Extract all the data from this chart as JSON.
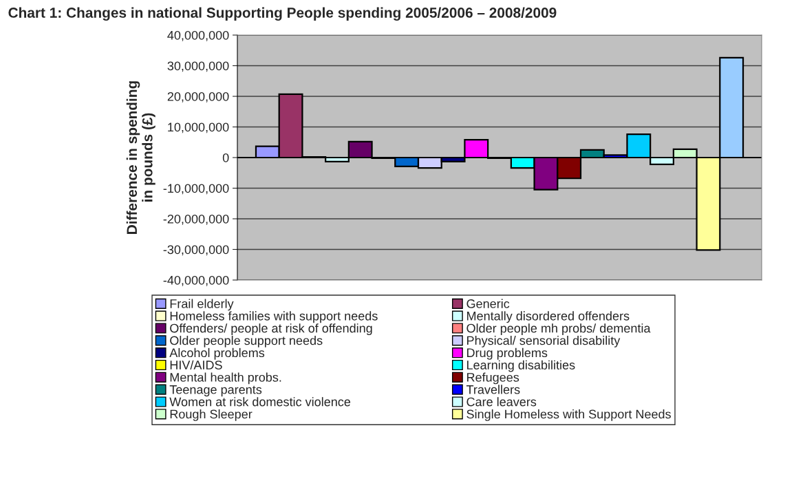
{
  "chart_data": {
    "type": "bar",
    "title": "Chart 1: Changes in national Supporting People spending 2005/2006 – 2008/2009",
    "ylabel": "Difference in spending\nin pounds (£)",
    "categories": [
      null
    ],
    "series": [
      {
        "name": "Frail elderly",
        "color": "#9999ff",
        "values": [
          3700000
        ]
      },
      {
        "name": "Generic",
        "color": "#993366",
        "values": [
          20700000
        ]
      },
      {
        "name": "Homeless families with support needs",
        "color": "#ffffcc",
        "values": [
          200000
        ]
      },
      {
        "name": "Mentally disordered offenders",
        "color": "#ccffff",
        "values": [
          -1300000
        ]
      },
      {
        "name": "Offenders/ people at risk of offending",
        "color": "#660066",
        "values": [
          5200000
        ]
      },
      {
        "name": "Older people mh probs/ dementia",
        "color": "#ff8080",
        "values": [
          -200000
        ]
      },
      {
        "name": "Older people support needs",
        "color": "#0066cc",
        "values": [
          -2900000
        ]
      },
      {
        "name": "Physical/ sensorial disability",
        "color": "#ccccff",
        "values": [
          -3400000
        ]
      },
      {
        "name": "Alcohol problems",
        "color": "#000080",
        "values": [
          -1300000
        ]
      },
      {
        "name": "Drug problems",
        "color": "#ff00ff",
        "values": [
          5800000
        ]
      },
      {
        "name": "HIV/AIDS",
        "color": "#ffff00",
        "values": [
          -200000
        ]
      },
      {
        "name": "Learning disabilities",
        "color": "#00ffff",
        "values": [
          -3400000
        ]
      },
      {
        "name": "Mental health probs.",
        "color": "#800080",
        "values": [
          -10500000
        ]
      },
      {
        "name": "Refugees",
        "color": "#800000",
        "values": [
          -6800000
        ]
      },
      {
        "name": "Teenage parents",
        "color": "#008080",
        "values": [
          2500000
        ]
      },
      {
        "name": "Travellers",
        "color": "#0000ff",
        "values": [
          800000
        ]
      },
      {
        "name": "Women at risk domestic violence",
        "color": "#00ccff",
        "values": [
          7600000
        ]
      },
      {
        "name": "Care leavers",
        "color": "#ccffff",
        "values": [
          -2200000
        ]
      },
      {
        "name": "Rough Sleeper",
        "color": "#ccffcc",
        "values": [
          2700000
        ]
      },
      {
        "name": "Single Homeless with Support Needs",
        "color": "#ffff99",
        "values": [
          -30200000
        ]
      },
      {
        "color": "#99ccff",
        "values": [
          32600000
        ]
      }
    ],
    "ylim": [
      -40000000,
      40000000
    ],
    "yticks": [
      {
        "value": -40000000,
        "label": "-40,000,000"
      },
      {
        "value": -30000000,
        "label": "-30,000,000"
      },
      {
        "value": -20000000,
        "label": "-20,000,000"
      },
      {
        "value": -10000000,
        "label": "-10,000,000"
      },
      {
        "value": 0,
        "label": "0"
      },
      {
        "value": 10000000,
        "label": "10,000,000"
      },
      {
        "value": 20000000,
        "label": "20,000,000"
      },
      {
        "value": 30000000,
        "label": "30,000,000"
      },
      {
        "value": 40000000,
        "label": "40,000,000"
      }
    ],
    "grid": "y",
    "legend": "bottom"
  }
}
